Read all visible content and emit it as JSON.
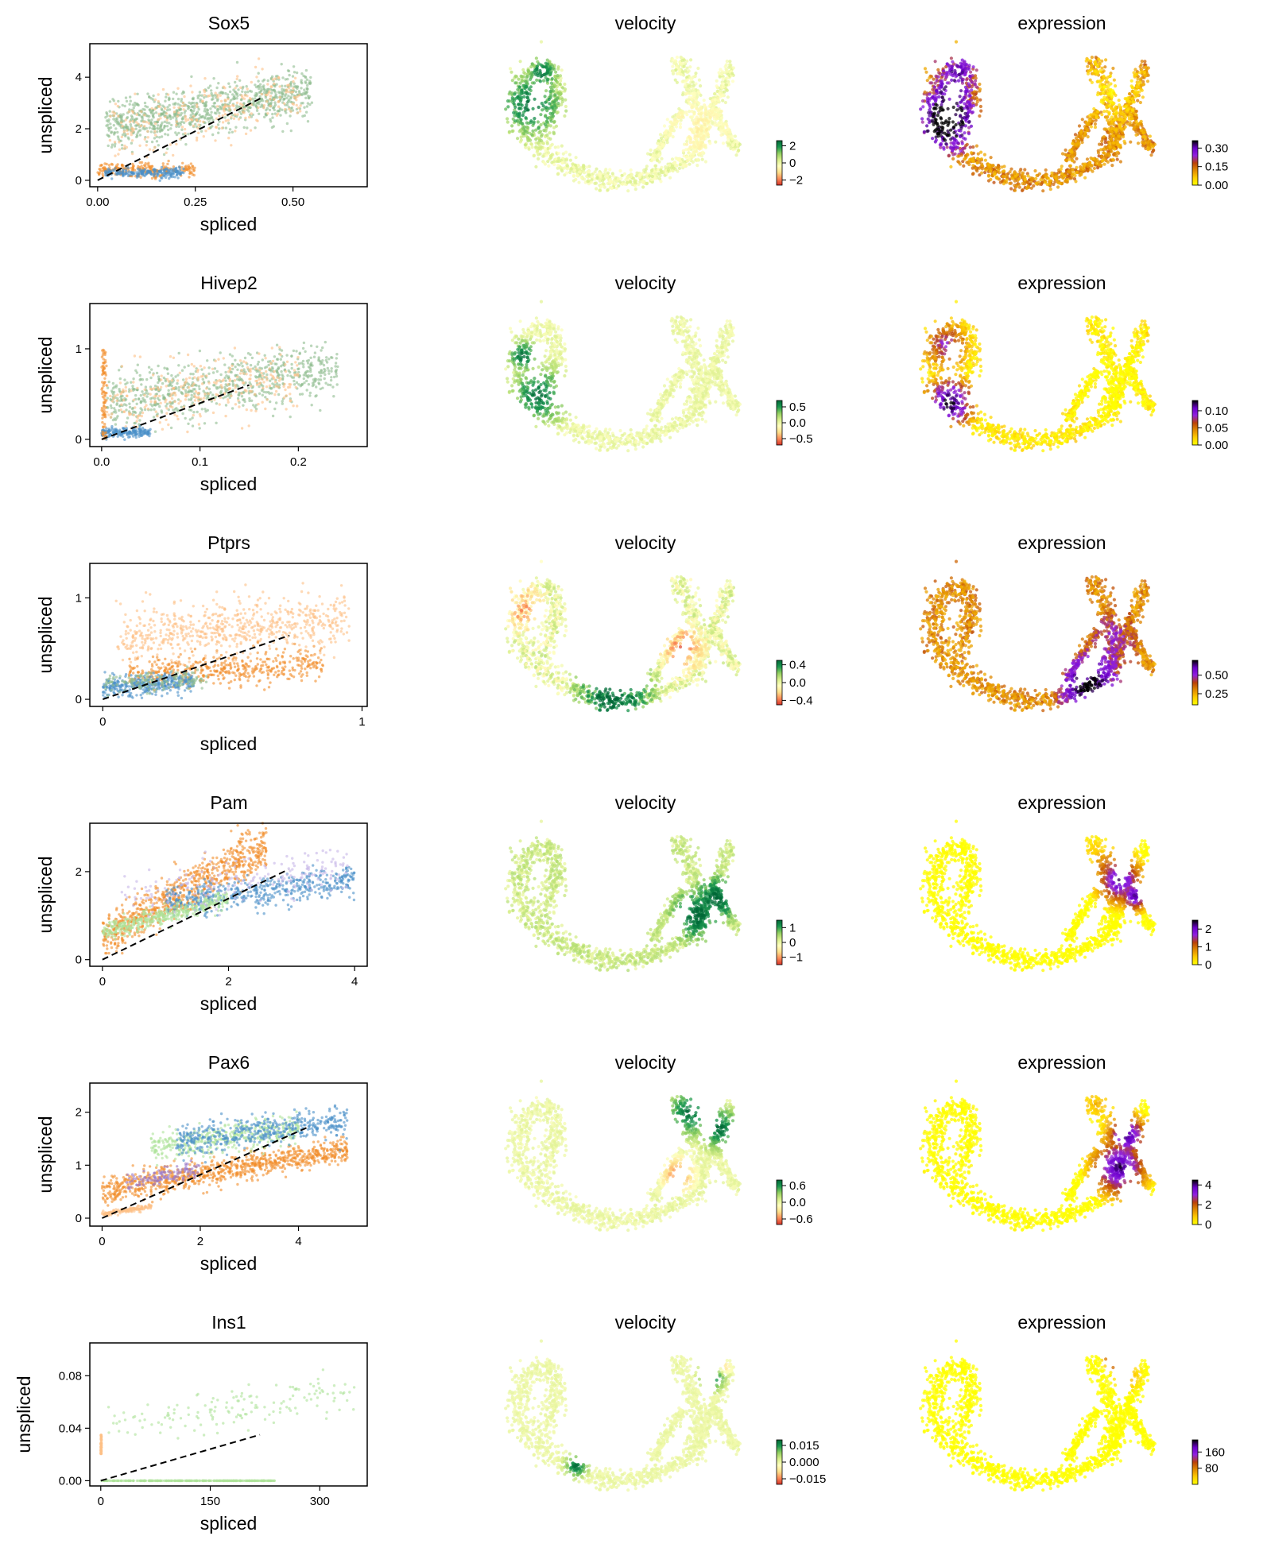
{
  "figure": {
    "panel_titles": {
      "velocity": "velocity",
      "expression": "expression"
    },
    "xlabel": "spliced",
    "ylabel": "unspliced",
    "colors": {
      "orange": "#f28e2b",
      "light_orange": "#fdbf86",
      "sage_green": "#8fbc8f",
      "light_green": "#aee39a",
      "blue": "#4a8fc8",
      "purple": "#9a78c8",
      "lavender": "#c7b6e8",
      "fit_line": "#000000"
    },
    "velocity_colormap": [
      "#d73027",
      "#fc8d59",
      "#fee08b",
      "#ffffbf",
      "#d9ef8b",
      "#91cf60",
      "#1a9850",
      "#006837"
    ],
    "expression_colormap": [
      "#ffff00",
      "#ffcc00",
      "#e08a00",
      "#b8400a",
      "#9020e0",
      "#6a00c8",
      "#000000"
    ]
  },
  "chart_data": [
    {
      "type": "scatter",
      "title": "Sox5",
      "xlabel": "spliced",
      "ylabel": "unspliced",
      "xlim": [
        -0.02,
        0.69
      ],
      "ylim": [
        -0.25,
        5.3
      ],
      "xticks": [
        "0.00",
        "0.25",
        "0.50"
      ],
      "xtick_values": [
        0,
        0.25,
        0.5
      ],
      "yticks": [
        "0",
        "2",
        "4"
      ],
      "ytick_values": [
        0,
        2,
        4
      ],
      "fit_line": [
        [
          0.0,
          0.0
        ],
        [
          0.42,
          3.2
        ]
      ],
      "clusters": [
        {
          "color": "sage_green",
          "count": 900,
          "x": [
            0.02,
            0.55
          ],
          "y": [
            0.5,
            5.0
          ],
          "slope": 6.0,
          "spread": 0.9
        },
        {
          "color": "light_orange",
          "count": 260,
          "x": [
            0.02,
            0.52
          ],
          "y": [
            0.3,
            4.8
          ],
          "slope": 6.0,
          "spread": 1.2
        },
        {
          "color": "orange",
          "count": 220,
          "x": [
            0.0,
            0.25
          ],
          "y": [
            0.0,
            0.8
          ],
          "slope": 0.0,
          "spread": 0.25
        },
        {
          "color": "blue",
          "count": 200,
          "x": [
            0.02,
            0.22
          ],
          "y": [
            0.0,
            0.6
          ],
          "slope": 0.0,
          "spread": 0.2
        }
      ],
      "velocity_colorbar": {
        "ticks": [
          "2",
          "0",
          "−2"
        ],
        "tick_values": [
          2,
          0,
          -2
        ],
        "range": [
          -2.6,
          2.6
        ]
      },
      "expression_colorbar": {
        "ticks": [
          "0.30",
          "0.15",
          "0.00"
        ],
        "tick_values": [
          0.3,
          0.15,
          0.0
        ],
        "range": [
          0.0,
          0.36
        ]
      },
      "velocity_pattern": "sox5",
      "expression_pattern": "sox5"
    },
    {
      "type": "scatter",
      "title": "Hivep2",
      "xlabel": "spliced",
      "ylabel": "unspliced",
      "xlim": [
        -0.012,
        0.27
      ],
      "ylim": [
        -0.08,
        1.5
      ],
      "xticks": [
        "0.0",
        "0.1",
        "0.2"
      ],
      "xtick_values": [
        0,
        0.1,
        0.2
      ],
      "yticks": [
        "0",
        "1"
      ],
      "ytick_values": [
        0,
        1
      ],
      "fit_line": [
        [
          0.0,
          0.0
        ],
        [
          0.15,
          0.6
        ]
      ],
      "clusters": [
        {
          "color": "sage_green",
          "count": 750,
          "x": [
            0.005,
            0.24
          ],
          "y": [
            0.1,
            1.1
          ],
          "slope": 3.5,
          "spread": 0.3
        },
        {
          "color": "light_orange",
          "count": 300,
          "x": [
            0.005,
            0.2
          ],
          "y": [
            0.1,
            1.0
          ],
          "slope": 3.5,
          "spread": 0.35
        },
        {
          "color": "blue",
          "count": 180,
          "x": [
            0.0,
            0.05
          ],
          "y": [
            0.0,
            0.15
          ],
          "slope": 0.0,
          "spread": 0.05
        },
        {
          "color": "orange",
          "count": 90,
          "x": [
            0.0,
            0.005
          ],
          "y": [
            0.0,
            1.0
          ],
          "slope": 0.0,
          "spread": 0.0
        }
      ],
      "velocity_colorbar": {
        "ticks": [
          "0.5",
          "0.0",
          "−0.5"
        ],
        "tick_values": [
          0.5,
          0,
          -0.5
        ],
        "range": [
          -0.7,
          0.7
        ]
      },
      "expression_colorbar": {
        "ticks": [
          "0.10",
          "0.05",
          "0.00"
        ],
        "tick_values": [
          0.1,
          0.05,
          0.0
        ],
        "range": [
          0.0,
          0.13
        ]
      },
      "velocity_pattern": "hivep2",
      "expression_pattern": "hivep2"
    },
    {
      "type": "scatter",
      "title": "Ptprs",
      "xlabel": "spliced",
      "ylabel": "unspliced",
      "xlim": [
        -0.05,
        1.02
      ],
      "ylim": [
        -0.07,
        1.34
      ],
      "xticks": [
        "0",
        "1"
      ],
      "xtick_values": [
        0,
        1
      ],
      "yticks": [
        "0",
        "1"
      ],
      "ytick_values": [
        0,
        1
      ],
      "fit_line": [
        [
          0.0,
          0.0
        ],
        [
          0.72,
          0.63
        ]
      ],
      "clusters": [
        {
          "color": "light_orange",
          "count": 650,
          "x": [
            0.05,
            0.95
          ],
          "y": [
            0.2,
            1.2
          ],
          "slope": 0.4,
          "spread": 0.25
        },
        {
          "color": "orange",
          "count": 450,
          "x": [
            0.1,
            0.85
          ],
          "y": [
            0.0,
            0.6
          ],
          "slope": 0.3,
          "spread": 0.15
        },
        {
          "color": "blue",
          "count": 350,
          "x": [
            0.0,
            0.35
          ],
          "y": [
            0.0,
            0.3
          ],
          "slope": 0.3,
          "spread": 0.1
        },
        {
          "color": "sage_green",
          "count": 150,
          "x": [
            0.0,
            0.4
          ],
          "y": [
            0.0,
            0.35
          ],
          "slope": 0.3,
          "spread": 0.1
        }
      ],
      "velocity_colorbar": {
        "ticks": [
          "0.4",
          "0.0",
          "−0.4"
        ],
        "tick_values": [
          0.4,
          0,
          -0.4
        ],
        "range": [
          -0.5,
          0.5
        ]
      },
      "expression_colorbar": {
        "ticks": [
          "0.50",
          "0.25"
        ],
        "tick_values": [
          0.5,
          0.25
        ],
        "range": [
          0.1,
          0.7
        ]
      },
      "velocity_pattern": "ptprs",
      "expression_pattern": "ptprs"
    },
    {
      "type": "scatter",
      "title": "Pam",
      "xlabel": "spliced",
      "ylabel": "unspliced",
      "xlim": [
        -0.2,
        4.2
      ],
      "ylim": [
        -0.15,
        3.1
      ],
      "xticks": [
        "0",
        "2",
        "4"
      ],
      "xtick_values": [
        0,
        2,
        4
      ],
      "yticks": [
        "0",
        "2"
      ],
      "ytick_values": [
        0,
        2
      ],
      "fit_line": [
        [
          0.0,
          0.0
        ],
        [
          2.95,
          2.05
        ]
      ],
      "clusters": [
        {
          "color": "orange",
          "count": 800,
          "x": [
            0.0,
            2.6
          ],
          "y": [
            0.2,
            2.9
          ],
          "slope": 1.8,
          "spread": 0.5
        },
        {
          "color": "blue",
          "count": 500,
          "x": [
            1.0,
            4.0
          ],
          "y": [
            0.8,
            2.3
          ],
          "slope": 0.4,
          "spread": 0.35
        },
        {
          "color": "light_green",
          "count": 400,
          "x": [
            0.0,
            2.0
          ],
          "y": [
            0.2,
            1.8
          ],
          "slope": 0.8,
          "spread": 0.2
        },
        {
          "color": "lavender",
          "count": 200,
          "x": [
            0.3,
            3.9
          ],
          "y": [
            0.6,
            3.0
          ],
          "slope": 0.4,
          "spread": 0.5
        }
      ],
      "velocity_colorbar": {
        "ticks": [
          "1",
          "0",
          "−1"
        ],
        "tick_values": [
          1,
          0,
          -1
        ],
        "range": [
          -1.5,
          1.5
        ]
      },
      "expression_colorbar": {
        "ticks": [
          "2",
          "1",
          "0"
        ],
        "tick_values": [
          2,
          1,
          0
        ],
        "range": [
          0,
          2.5
        ]
      },
      "velocity_pattern": "pam",
      "expression_pattern": "pam"
    },
    {
      "type": "scatter",
      "title": "Pax6",
      "xlabel": "spliced",
      "ylabel": "unspliced",
      "xlim": [
        -0.25,
        5.4
      ],
      "ylim": [
        -0.15,
        2.55
      ],
      "xticks": [
        "0",
        "2",
        "4"
      ],
      "xtick_values": [
        0,
        2,
        4
      ],
      "yticks": [
        "0",
        "1",
        "2"
      ],
      "ytick_values": [
        0,
        1,
        2
      ],
      "fit_line": [
        [
          0.0,
          0.0
        ],
        [
          4.2,
          1.72
        ]
      ],
      "clusters": [
        {
          "color": "orange",
          "count": 900,
          "x": [
            0.0,
            5.0
          ],
          "y": [
            0.0,
            1.8
          ],
          "slope": 0.35,
          "spread": 0.25
        },
        {
          "color": "light_green",
          "count": 400,
          "x": [
            1.0,
            4.0
          ],
          "y": [
            0.8,
            2.2
          ],
          "slope": 0.3,
          "spread": 0.3
        },
        {
          "color": "blue",
          "count": 450,
          "x": [
            1.5,
            5.0
          ],
          "y": [
            1.0,
            2.3
          ],
          "slope": 0.25,
          "spread": 0.3
        },
        {
          "color": "purple",
          "count": 120,
          "x": [
            0.5,
            2.0
          ],
          "y": [
            0.4,
            1.2
          ],
          "slope": 0.4,
          "spread": 0.15
        },
        {
          "color": "light_orange",
          "count": 150,
          "x": [
            0.0,
            1.0
          ],
          "y": [
            0.0,
            0.3
          ],
          "slope": 0.3,
          "spread": 0.05
        }
      ],
      "velocity_colorbar": {
        "ticks": [
          "0.6",
          "0.0",
          "−0.6"
        ],
        "tick_values": [
          0.6,
          0,
          -0.6
        ],
        "range": [
          -0.8,
          0.8
        ]
      },
      "expression_colorbar": {
        "ticks": [
          "4",
          "2",
          "0"
        ],
        "tick_values": [
          4,
          2,
          0
        ],
        "range": [
          0,
          4.5
        ]
      },
      "velocity_pattern": "pax6",
      "expression_pattern": "pax6"
    },
    {
      "type": "scatter",
      "title": "Ins1",
      "xlabel": "spliced",
      "ylabel": "unspliced",
      "xlim": [
        -15,
        365
      ],
      "ylim": [
        -0.004,
        0.105
      ],
      "xticks": [
        "0",
        "150",
        "300"
      ],
      "xtick_values": [
        0,
        150,
        300
      ],
      "yticks": [
        "0.00",
        "0.04",
        "0.08"
      ],
      "ytick_values": [
        0,
        0.04,
        0.08
      ],
      "fit_line": [
        [
          0.0,
          0.0
        ],
        [
          218,
          0.035
        ]
      ],
      "clusters": [
        {
          "color": "light_green",
          "count": 300,
          "x": [
            0.0,
            240
          ],
          "y": [
            0.0,
            0.0
          ],
          "slope": 0.0,
          "spread": 0.0
        },
        {
          "color": "light_green",
          "count": 150,
          "x": [
            10,
            350
          ],
          "y": [
            0.01,
            0.1
          ],
          "slope": 0.00018,
          "spread": 0.015
        },
        {
          "color": "light_orange",
          "count": 60,
          "x": [
            0.0,
            1.0
          ],
          "y": [
            0.02,
            0.035
          ],
          "slope": 0.0,
          "spread": 0.0
        }
      ],
      "velocity_colorbar": {
        "ticks": [
          "0.015",
          "0.000",
          "−0.015"
        ],
        "tick_values": [
          0.015,
          0,
          -0.015
        ],
        "range": [
          -0.02,
          0.02
        ]
      },
      "expression_colorbar": {
        "ticks": [
          "160",
          "80"
        ],
        "tick_values": [
          160,
          80
        ],
        "range": [
          0,
          220
        ]
      },
      "velocity_pattern": "ins1",
      "expression_pattern": "ins1"
    }
  ]
}
